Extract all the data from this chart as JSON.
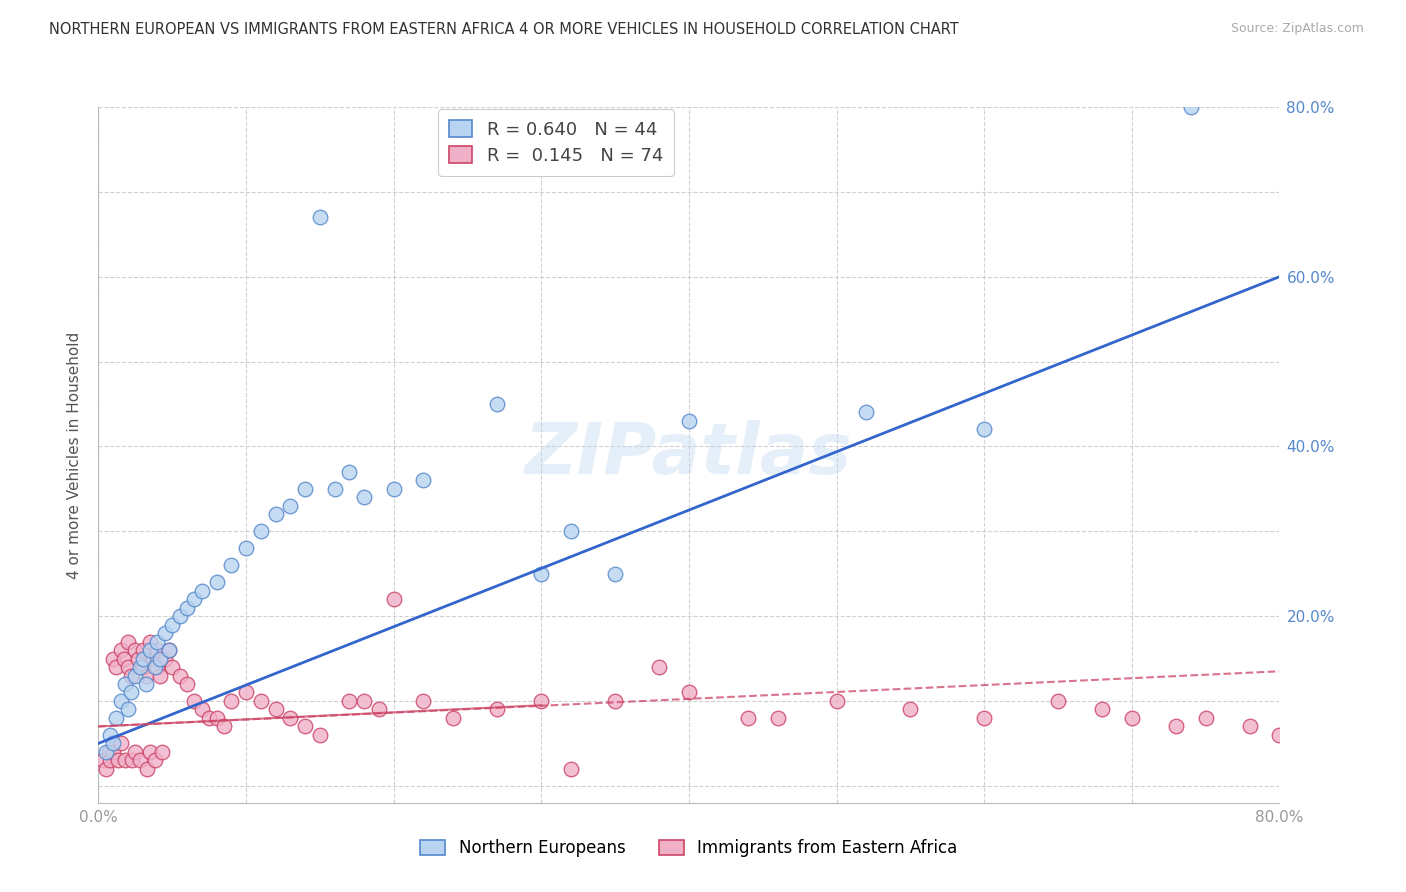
{
  "title": "NORTHERN EUROPEAN VS IMMIGRANTS FROM EASTERN AFRICA 4 OR MORE VEHICLES IN HOUSEHOLD CORRELATION CHART",
  "source": "Source: ZipAtlas.com",
  "ylabel": "4 or more Vehicles in Household",
  "xlim": [
    0.0,
    0.8
  ],
  "ylim": [
    -0.02,
    0.8
  ],
  "xtick_positions": [
    0.0,
    0.1,
    0.2,
    0.3,
    0.4,
    0.5,
    0.6,
    0.7,
    0.8
  ],
  "ytick_positions": [
    0.0,
    0.1,
    0.2,
    0.3,
    0.4,
    0.5,
    0.6,
    0.7,
    0.8
  ],
  "xticklabels": [
    "0.0%",
    "",
    "",
    "",
    "",
    "",
    "",
    "",
    "80.0%"
  ],
  "ytick_right_labels": [
    "",
    "",
    "20.0%",
    "",
    "40.0%",
    "",
    "60.0%",
    "",
    "80.0%"
  ],
  "blue_R": 0.64,
  "blue_N": 44,
  "pink_R": 0.145,
  "pink_N": 74,
  "blue_face": "#b8d4f0",
  "blue_edge": "#5588cc",
  "pink_face": "#f0b0c8",
  "pink_edge": "#cc4466",
  "blue_line": "#3366cc",
  "pink_line": "#cc4466",
  "legend_labels": [
    "Northern Europeans",
    "Immigrants from Eastern Africa"
  ],
  "watermark": "ZIPatlas",
  "blue_x": [
    0.005,
    0.008,
    0.01,
    0.012,
    0.015,
    0.018,
    0.02,
    0.022,
    0.025,
    0.028,
    0.03,
    0.032,
    0.035,
    0.038,
    0.04,
    0.042,
    0.045,
    0.048,
    0.05,
    0.055,
    0.06,
    0.065,
    0.07,
    0.08,
    0.09,
    0.1,
    0.11,
    0.12,
    0.13,
    0.14,
    0.15,
    0.16,
    0.17,
    0.18,
    0.2,
    0.22,
    0.27,
    0.3,
    0.32,
    0.35,
    0.4,
    0.52,
    0.6,
    0.74
  ],
  "blue_y": [
    0.04,
    0.06,
    0.05,
    0.08,
    0.1,
    0.12,
    0.09,
    0.11,
    0.13,
    0.14,
    0.15,
    0.12,
    0.16,
    0.14,
    0.17,
    0.15,
    0.18,
    0.16,
    0.19,
    0.2,
    0.21,
    0.22,
    0.23,
    0.24,
    0.26,
    0.28,
    0.3,
    0.32,
    0.33,
    0.35,
    0.67,
    0.35,
    0.37,
    0.34,
    0.35,
    0.36,
    0.45,
    0.25,
    0.3,
    0.25,
    0.43,
    0.44,
    0.42,
    0.8
  ],
  "pink_x": [
    0.003,
    0.005,
    0.007,
    0.008,
    0.01,
    0.01,
    0.012,
    0.013,
    0.015,
    0.015,
    0.017,
    0.018,
    0.02,
    0.02,
    0.022,
    0.023,
    0.025,
    0.025,
    0.027,
    0.028,
    0.03,
    0.03,
    0.032,
    0.033,
    0.035,
    0.035,
    0.037,
    0.038,
    0.04,
    0.04,
    0.042,
    0.043,
    0.045,
    0.048,
    0.05,
    0.055,
    0.06,
    0.065,
    0.07,
    0.075,
    0.08,
    0.085,
    0.09,
    0.1,
    0.11,
    0.12,
    0.13,
    0.14,
    0.15,
    0.17,
    0.18,
    0.19,
    0.2,
    0.22,
    0.24,
    0.27,
    0.3,
    0.32,
    0.35,
    0.38,
    0.4,
    0.44,
    0.46,
    0.5,
    0.55,
    0.6,
    0.65,
    0.68,
    0.7,
    0.73,
    0.75,
    0.78,
    0.8,
    0.82
  ],
  "pink_y": [
    0.03,
    0.02,
    0.04,
    0.03,
    0.15,
    0.04,
    0.14,
    0.03,
    0.16,
    0.05,
    0.15,
    0.03,
    0.14,
    0.17,
    0.13,
    0.03,
    0.16,
    0.04,
    0.15,
    0.03,
    0.14,
    0.16,
    0.13,
    0.02,
    0.17,
    0.04,
    0.15,
    0.03,
    0.14,
    0.16,
    0.13,
    0.04,
    0.15,
    0.16,
    0.14,
    0.13,
    0.12,
    0.1,
    0.09,
    0.08,
    0.08,
    0.07,
    0.1,
    0.11,
    0.1,
    0.09,
    0.08,
    0.07,
    0.06,
    0.1,
    0.1,
    0.09,
    0.22,
    0.1,
    0.08,
    0.09,
    0.1,
    0.02,
    0.1,
    0.14,
    0.11,
    0.08,
    0.08,
    0.1,
    0.09,
    0.08,
    0.1,
    0.09,
    0.08,
    0.07,
    0.08,
    0.07,
    0.06,
    0.07
  ]
}
